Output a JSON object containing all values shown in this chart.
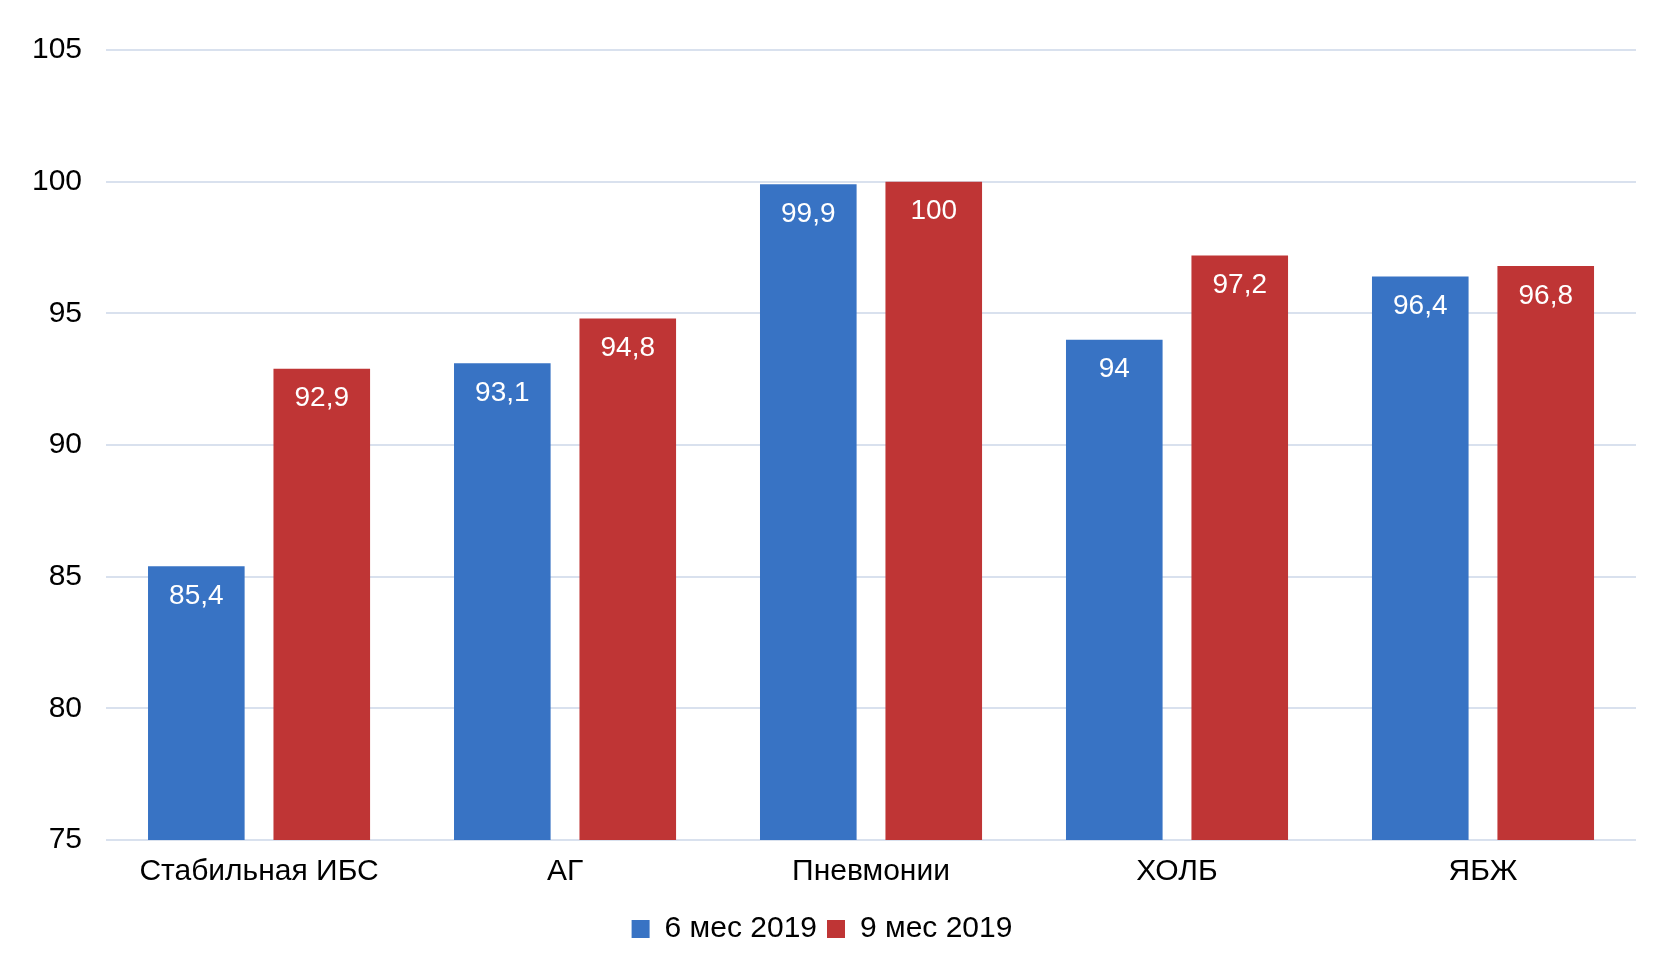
{
  "chart_data": {
    "type": "bar",
    "categories": [
      "Стабильная ИБС",
      "АГ",
      "Пневмонии",
      "ХОЛБ",
      "ЯБЖ"
    ],
    "series": [
      {
        "name": "6 мес 2019",
        "color": "#3873c4",
        "values": [
          85.4,
          93.1,
          99.9,
          94,
          96.4
        ],
        "value_labels": [
          "85,4",
          "93,1",
          "99,9",
          "94",
          "96,4"
        ]
      },
      {
        "name": "9 мес 2019",
        "color": "#bf3535",
        "values": [
          92.9,
          94.8,
          100,
          97.2,
          96.8
        ],
        "value_labels": [
          "92,9",
          "94,8",
          "100",
          "97,2",
          "96,8"
        ]
      }
    ],
    "ylim": [
      75,
      105
    ],
    "yticks": [
      75,
      80,
      85,
      90,
      95,
      100,
      105
    ],
    "grid": "y",
    "legend": "bottom"
  }
}
